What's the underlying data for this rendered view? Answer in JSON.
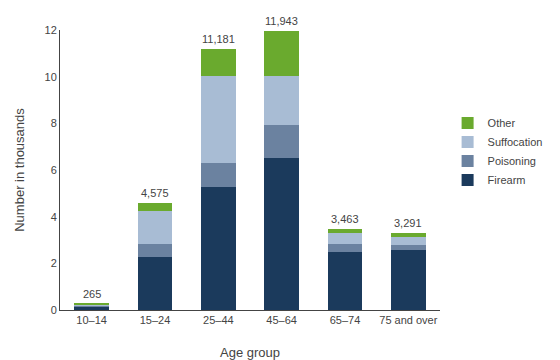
{
  "chart_data": {
    "type": "bar",
    "stacked": true,
    "categories": [
      "10–14",
      "15–24",
      "25–44",
      "45–64",
      "65–74",
      "75 and over"
    ],
    "series": [
      {
        "name": "Firearm",
        "color": "#1b3a5c",
        "values": [
          0.13,
          2.27,
          5.27,
          6.52,
          2.49,
          2.59
        ]
      },
      {
        "name": "Poisoning",
        "color": "#6b82a0",
        "values": [
          0.06,
          0.58,
          1.05,
          1.42,
          0.33,
          0.2
        ]
      },
      {
        "name": "Suffocation",
        "color": "#a8bcd4",
        "values": [
          0.055,
          1.38,
          3.72,
          2.11,
          0.48,
          0.36
        ]
      },
      {
        "name": "Other",
        "color": "#6aaa2e",
        "values": [
          0.02,
          0.345,
          1.141,
          1.893,
          0.163,
          0.141
        ]
      }
    ],
    "totals": {
      "values": [
        0.265,
        4.575,
        11.181,
        11.943,
        3.463,
        3.291
      ],
      "value_labels": [
        "265",
        "4,575",
        "11,181",
        "11,943",
        "3,463",
        "3,291"
      ]
    },
    "xlabel": "Age group",
    "ylabel": "Number in thousands",
    "ylim": [
      0,
      12
    ],
    "yticks": [
      0,
      2,
      4,
      6,
      8,
      10,
      12
    ],
    "grid": false,
    "legend": "right"
  }
}
